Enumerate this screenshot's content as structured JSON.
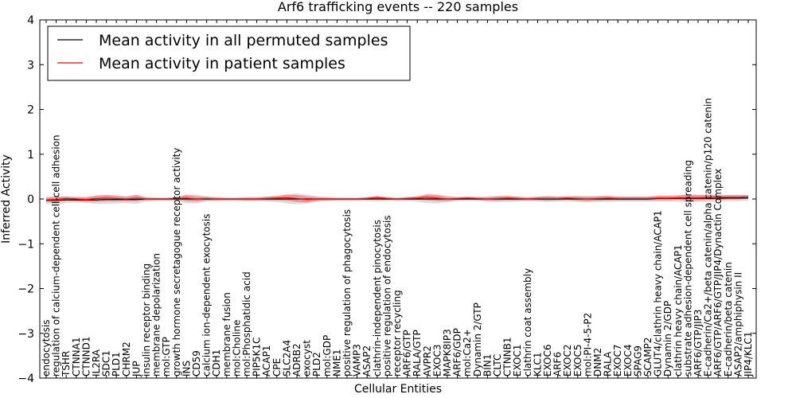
{
  "chart_data": {
    "type": "line",
    "title": "Arf6 trafficking events -- 220 samples",
    "xlabel": "Cellular Entities",
    "ylabel": "Inferred Activity",
    "ylim": [
      -4,
      4
    ],
    "yticks": [
      -4,
      -3,
      -2,
      -1,
      0,
      1,
      2,
      3,
      4
    ],
    "ytick_labels": [
      "−4",
      "−3",
      "−2",
      "−1",
      "0",
      "1",
      "2",
      "3",
      "4"
    ],
    "legend": {
      "position": "top-left",
      "entries": [
        {
          "label": "Mean activity in all permuted samples",
          "color": "#000000"
        },
        {
          "label": "Mean activity in patient samples",
          "color": "#ff0000"
        }
      ]
    },
    "categories": [
      "endocytosis",
      "regulation of calcium-dependent cell-cell adhesion",
      "TSHR",
      "CTNNA1",
      "CTNND1",
      "IL2RA",
      "SDC1",
      "PLD1",
      "CHRM2",
      "JUP",
      "insulin receptor binding",
      "membrane depolarization",
      "mol:GTP",
      "growth hormone secretagogue receptor activity",
      "INS",
      "CD59",
      "calcium ion-dependent exocytosis",
      "CDH1",
      "membrane fusion",
      "mol:Choline",
      "mol:Phosphatidic acid",
      "PIP5K1C",
      "ACAP1",
      "CPE",
      "SLC2A4",
      "ADRB2",
      "exocyst",
      "PLD2",
      "mol:GDP",
      "NME1",
      "positive regulation of phagocytosis",
      "VAMP3",
      "ASAP2",
      "clathrin-independent pinocytosis",
      "positive regulation of endocytosis",
      "receptor recycling",
      "ARF6/GTP",
      "RALA/GTP",
      "AVPR2",
      "EXOC3",
      "MAPK8IP3",
      "ARF6/GDP",
      "mol:Ca2+",
      "Dynamin 2/GTP",
      "BIN1",
      "CLTC",
      "CTNNB1",
      "EXOC1",
      "clathrin coat assembly",
      "KLC1",
      "EXOC6",
      "ARF6",
      "EXOC2",
      "EXOC5",
      "mol:PI-4-5-P2",
      "DNM2",
      "RALA",
      "EXOC7",
      "EXOC4",
      "SPAG9",
      "SCAMP2",
      "GLUT4/clathrin heavy chain/ACAP1",
      "Dynamin 2/GDP",
      "clathrin heavy chain/ACAP1",
      "substrate adhesion-dependent cell spreading",
      "ARF6/GTP/JIP3",
      "E-cadherin/Ca2+/beta catenin/alpha catenin/p120 catenin",
      "ARF6/GTP/ARF6/GTP/JIP4/Dynactin Complex",
      "E-cadherin/beta catenin",
      "ASAP2/amphiphysin II",
      "JIP4/KLC1"
    ],
    "series": [
      {
        "name": "Mean activity in all permuted samples",
        "color": "#000000",
        "values": [
          -0.03,
          -0.03,
          -0.02,
          -0.02,
          -0.02,
          -0.02,
          -0.01,
          -0.01,
          -0.01,
          -0.01,
          0,
          0,
          0,
          0,
          0,
          0,
          0,
          0,
          0,
          0,
          0,
          0,
          0,
          0,
          0,
          0,
          0,
          0,
          0,
          0,
          0,
          0,
          0,
          0,
          0,
          0,
          0,
          0,
          0,
          0,
          0,
          0,
          0,
          0,
          0,
          0,
          0,
          0,
          0,
          0,
          0,
          0,
          0,
          0,
          0,
          0,
          0,
          0,
          0,
          0,
          0,
          0.01,
          0.01,
          0.01,
          0.01,
          0.01,
          0.01,
          0.01,
          0.02,
          0.02,
          0.02
        ],
        "band": [
          0.08,
          0.09,
          0.07,
          0.06,
          0.07,
          0.09,
          0.1,
          0.09,
          0.08,
          0.1,
          0.05,
          0.04,
          0.04,
          0.05,
          0.1,
          0.1,
          0.06,
          0.05,
          0.04,
          0.04,
          0.05,
          0.05,
          0.06,
          0.07,
          0.1,
          0.12,
          0.1,
          0.06,
          0.05,
          0.04,
          0.04,
          0.04,
          0.05,
          0.06,
          0.05,
          0.04,
          0.05,
          0.06,
          0.09,
          0.1,
          0.07,
          0.05,
          0.05,
          0.05,
          0.06,
          0.07,
          0.07,
          0.06,
          0.05,
          0.06,
          0.07,
          0.06,
          0.06,
          0.07,
          0.07,
          0.07,
          0.07,
          0.06,
          0.06,
          0.06,
          0.06,
          0.07,
          0.07,
          0.07,
          0.09,
          0.08,
          0.08,
          0.07,
          0.07,
          0.07,
          0.06
        ]
      },
      {
        "name": "Mean activity in patient samples",
        "color": "#ff0000",
        "values": [
          -0.02,
          -0.01,
          0.01,
          0,
          -0.01,
          0.01,
          0.02,
          0.01,
          0,
          0.02,
          0,
          0,
          0,
          0.01,
          0.02,
          0,
          0.01,
          0,
          0,
          0,
          0,
          0,
          0.01,
          0.02,
          0.03,
          0.01,
          -0.01,
          0,
          0,
          0,
          0,
          0,
          0.01,
          0.03,
          0.01,
          0,
          0.01,
          0.02,
          0.04,
          0.02,
          0,
          0.01,
          0.02,
          0.01,
          0,
          0.01,
          0.02,
          0.01,
          0,
          0.01,
          0.01,
          0.01,
          0.02,
          0.01,
          0,
          0.01,
          0.02,
          0.01,
          0.01,
          0.01,
          0.01,
          0.02,
          0.02,
          0.03,
          0.03,
          0.03,
          0.04,
          0.04,
          0.04,
          0.04,
          0.05
        ],
        "band": [
          0.05,
          0.06,
          0.05,
          0.05,
          0.05,
          0.07,
          0.07,
          0.06,
          0.05,
          0.07,
          0.03,
          0.02,
          0.02,
          0.03,
          0.07,
          0.06,
          0.04,
          0.03,
          0.02,
          0.02,
          0.03,
          0.03,
          0.04,
          0.05,
          0.07,
          0.08,
          0.07,
          0.04,
          0.03,
          0.02,
          0.02,
          0.02,
          0.03,
          0.04,
          0.03,
          0.02,
          0.03,
          0.04,
          0.07,
          0.07,
          0.05,
          0.03,
          0.03,
          0.03,
          0.04,
          0.05,
          0.05,
          0.04,
          0.03,
          0.04,
          0.05,
          0.04,
          0.04,
          0.05,
          0.05,
          0.05,
          0.05,
          0.04,
          0.04,
          0.04,
          0.04,
          0.05,
          0.05,
          0.05,
          0.07,
          0.06,
          0.06,
          0.05,
          0.05,
          0.05,
          0.04
        ]
      }
    ]
  }
}
